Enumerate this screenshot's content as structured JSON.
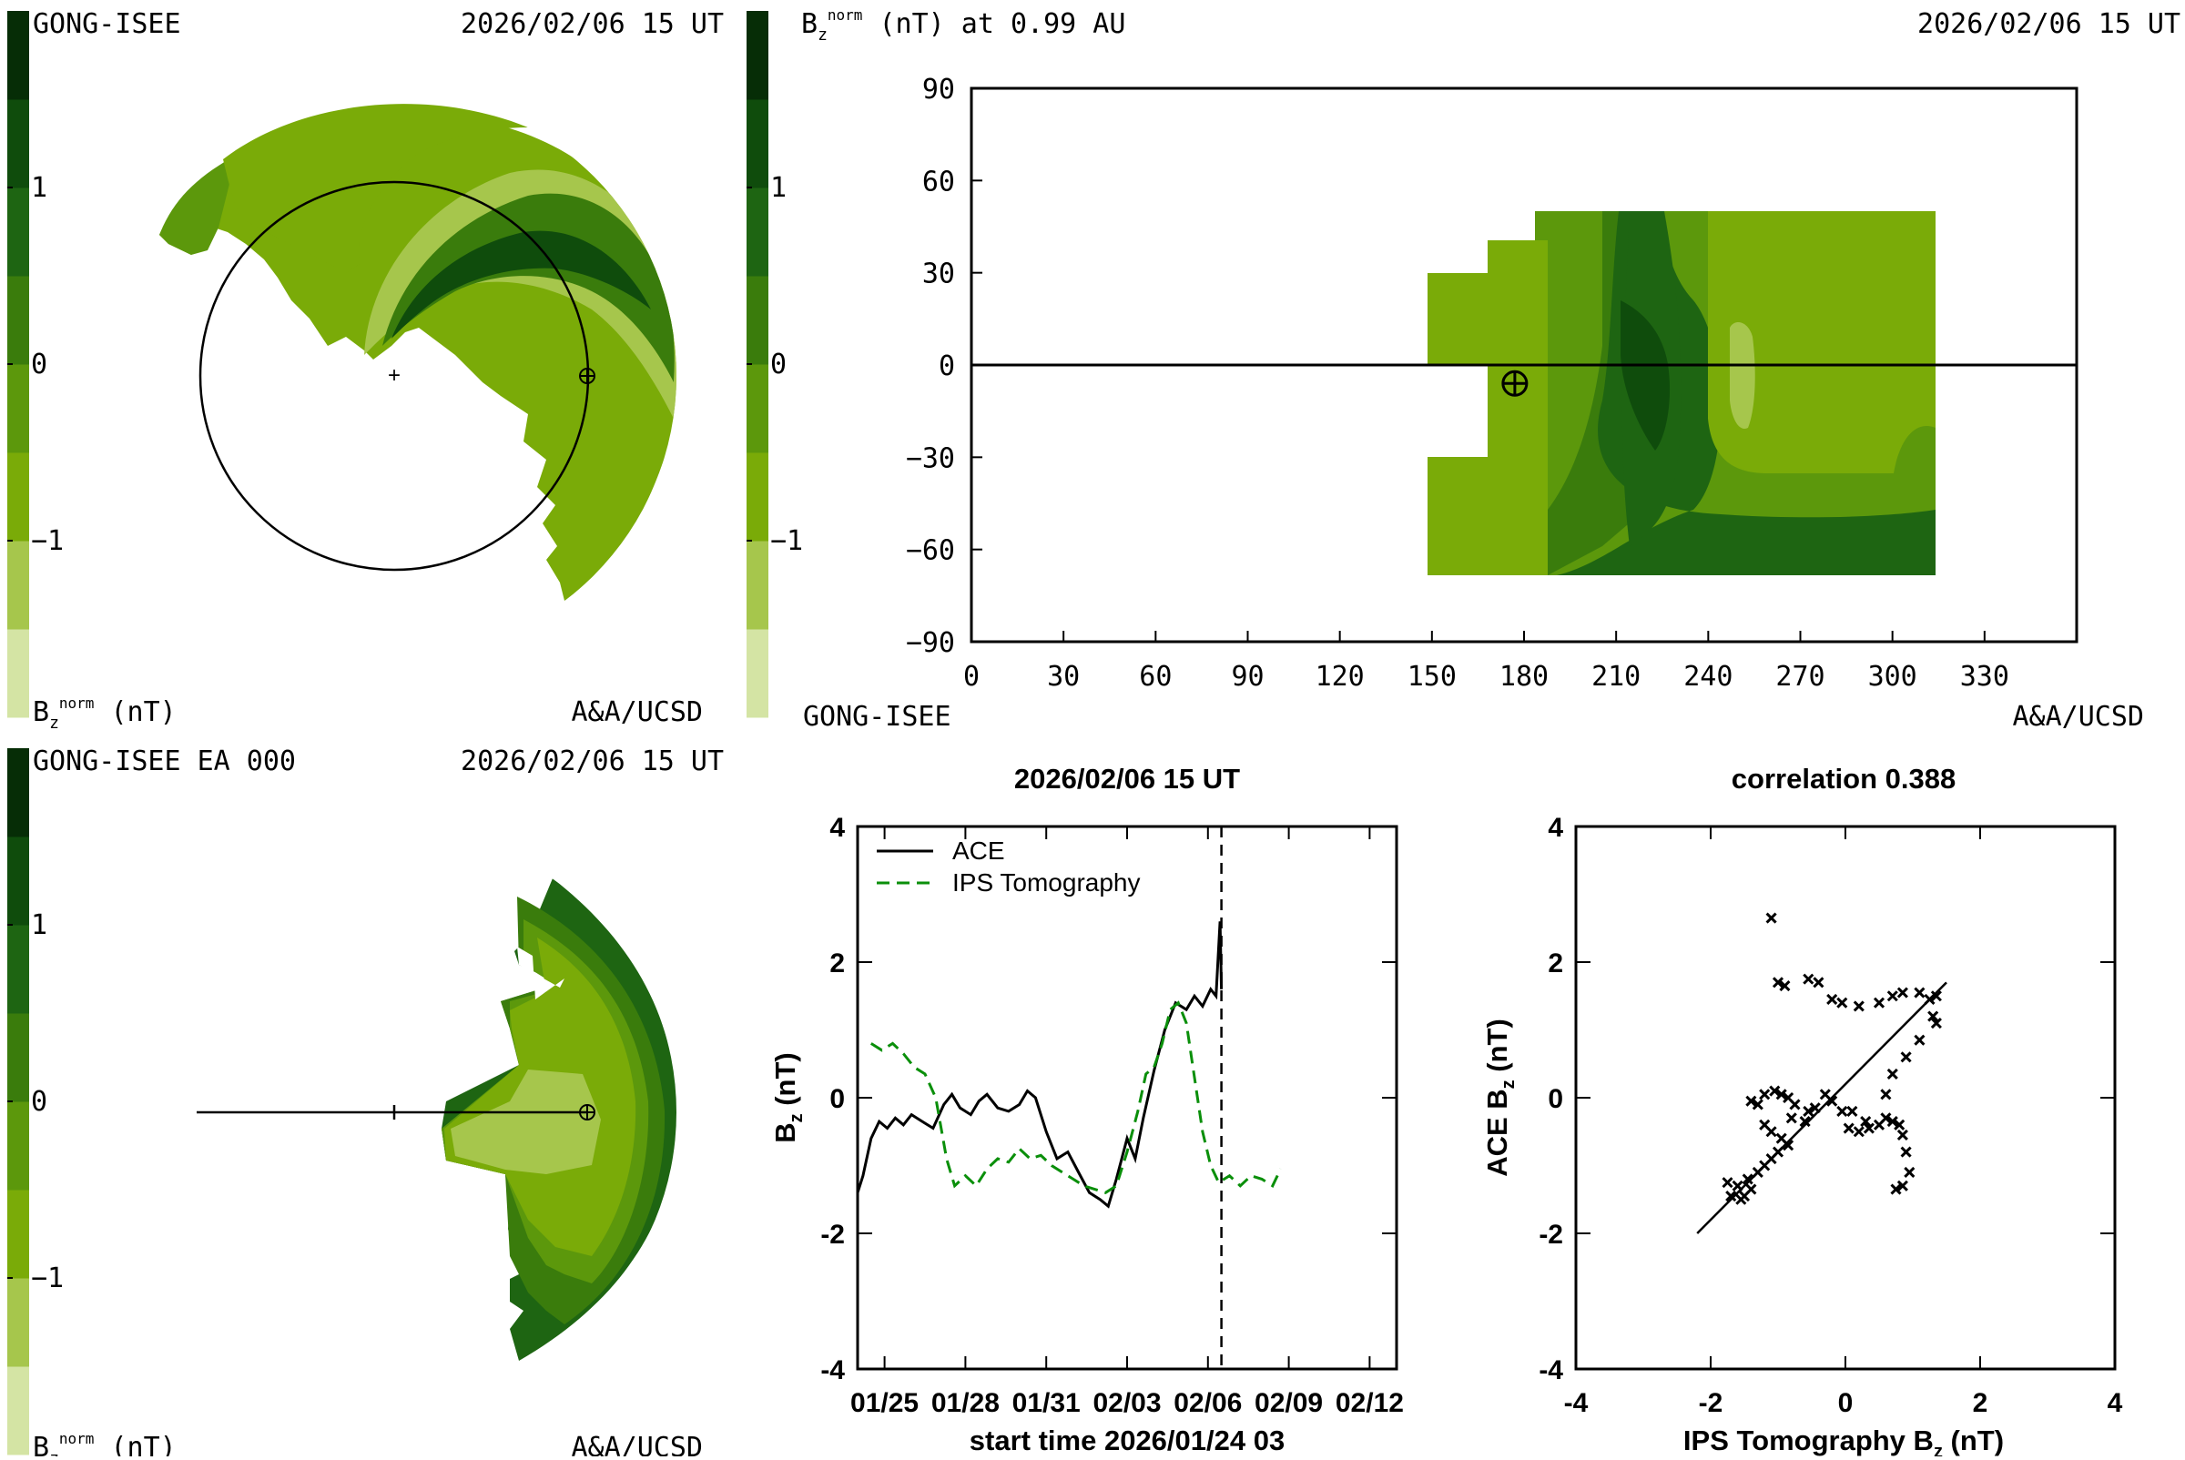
{
  "colorscale": {
    "colors": [
      "#d4e4a4",
      "#a6c64c",
      "#7aab08",
      "#5c980c",
      "#3a7c0c",
      "#1e6512",
      "#0f4c0c",
      "#062d06"
    ],
    "ticks": [
      "1",
      "0",
      "−1"
    ]
  },
  "panel_tl": {
    "title_left": "GONG-ISEE",
    "title_right": "2026/02/06 15 UT",
    "footer_left_base": "B",
    "footer_left_sub": "z",
    "footer_left_sup": "norm",
    "footer_left_rest": " (nT)",
    "footer_right": "A&A/UCSD"
  },
  "panel_tr": {
    "title_base": "B",
    "title_sub": "z",
    "title_sup": "norm",
    "title_rest": " (nT) at 0.99 AU",
    "title_right": "2026/02/06 15 UT",
    "footer_left": "GONG-ISEE",
    "footer_right": "A&A/UCSD",
    "x_ticks": [
      "0",
      "30",
      "60",
      "90",
      "120",
      "150",
      "180",
      "210",
      "240",
      "270",
      "300",
      "330"
    ],
    "y_ticks": [
      "90",
      "60",
      "30",
      "0",
      "−30",
      "−60",
      "−90"
    ],
    "xlim": [
      0,
      360
    ],
    "ylim": [
      -90,
      90
    ],
    "earth_marker": [
      177,
      -6
    ]
  },
  "panel_bl": {
    "title_left": "GONG-ISEE EA 000",
    "title_right": "2026/02/06 15 UT",
    "footer_left_base": "B",
    "footer_left_sub": "z",
    "footer_left_sup": "norm",
    "footer_left_rest": " (nT)",
    "footer_right": "A&A/UCSD"
  },
  "chart_data": [
    {
      "type": "line",
      "title": "2026/02/06 15 UT",
      "xlabel": "start time 2026/01/24 03",
      "ylabel_base": "B",
      "ylabel_sub": "z",
      "ylabel_rest": " (nT)",
      "x_ticks": [
        "01/25",
        "01/28",
        "01/31",
        "02/03",
        "02/06",
        "02/09",
        "02/12"
      ],
      "x_tick_days": [
        1,
        4,
        7,
        10,
        13,
        16,
        19
      ],
      "xlim": [
        0,
        20
      ],
      "ylim": [
        -4,
        4
      ],
      "y_ticks": [
        "4",
        "2",
        "0",
        "-2",
        "-4"
      ],
      "vline_day": 13.5,
      "series": [
        {
          "name": "ACE",
          "style": "solid",
          "color": "#000000",
          "points": [
            [
              0,
              -1.4
            ],
            [
              0.2,
              -1.15
            ],
            [
              0.5,
              -0.6
            ],
            [
              0.8,
              -0.35
            ],
            [
              1.1,
              -0.45
            ],
            [
              1.4,
              -0.3
            ],
            [
              1.7,
              -0.4
            ],
            [
              2.0,
              -0.25
            ],
            [
              2.4,
              -0.35
            ],
            [
              2.8,
              -0.45
            ],
            [
              3.2,
              -0.1
            ],
            [
              3.5,
              0.05
            ],
            [
              3.8,
              -0.15
            ],
            [
              4.2,
              -0.25
            ],
            [
              4.5,
              -0.05
            ],
            [
              4.8,
              0.05
            ],
            [
              5.2,
              -0.15
            ],
            [
              5.6,
              -0.2
            ],
            [
              6.0,
              -0.1
            ],
            [
              6.3,
              0.1
            ],
            [
              6.6,
              0.0
            ],
            [
              7.0,
              -0.5
            ],
            [
              7.4,
              -0.9
            ],
            [
              7.8,
              -0.8
            ],
            [
              8.2,
              -1.1
            ],
            [
              8.6,
              -1.4
            ],
            [
              9.0,
              -1.5
            ],
            [
              9.3,
              -1.6
            ],
            [
              9.6,
              -1.2
            ],
            [
              10.0,
              -0.6
            ],
            [
              10.3,
              -0.9
            ],
            [
              10.6,
              -0.3
            ],
            [
              11.0,
              0.4
            ],
            [
              11.4,
              1.0
            ],
            [
              11.8,
              1.4
            ],
            [
              12.2,
              1.3
            ],
            [
              12.5,
              1.5
            ],
            [
              12.8,
              1.35
            ],
            [
              13.1,
              1.6
            ],
            [
              13.3,
              1.5
            ],
            [
              13.45,
              2.6
            ],
            [
              13.5,
              1.6
            ]
          ]
        },
        {
          "name": "IPS Tomography",
          "style": "dashed",
          "color": "#0a8f0a",
          "points": [
            [
              0.5,
              0.8
            ],
            [
              0.9,
              0.7
            ],
            [
              1.3,
              0.8
            ],
            [
              1.7,
              0.65
            ],
            [
              2.1,
              0.45
            ],
            [
              2.5,
              0.35
            ],
            [
              2.9,
              0.0
            ],
            [
              3.3,
              -0.9
            ],
            [
              3.6,
              -1.3
            ],
            [
              4.0,
              -1.15
            ],
            [
              4.4,
              -1.3
            ],
            [
              4.8,
              -1.05
            ],
            [
              5.2,
              -0.9
            ],
            [
              5.6,
              -0.95
            ],
            [
              6.0,
              -0.75
            ],
            [
              6.4,
              -0.9
            ],
            [
              6.8,
              -0.85
            ],
            [
              7.2,
              -1.0
            ],
            [
              7.6,
              -1.1
            ],
            [
              8.0,
              -1.2
            ],
            [
              8.4,
              -1.3
            ],
            [
              8.8,
              -1.35
            ],
            [
              9.2,
              -1.4
            ],
            [
              9.6,
              -1.3
            ],
            [
              10.0,
              -0.8
            ],
            [
              10.4,
              -0.2
            ],
            [
              10.7,
              0.35
            ],
            [
              11.0,
              0.45
            ],
            [
              11.3,
              0.8
            ],
            [
              11.6,
              1.3
            ],
            [
              11.9,
              1.4
            ],
            [
              12.2,
              1.1
            ],
            [
              12.5,
              0.3
            ],
            [
              12.8,
              -0.5
            ],
            [
              13.1,
              -1.0
            ],
            [
              13.4,
              -1.25
            ],
            [
              13.8,
              -1.15
            ],
            [
              14.2,
              -1.3
            ],
            [
              14.6,
              -1.15
            ],
            [
              15.0,
              -1.2
            ],
            [
              15.4,
              -1.3
            ],
            [
              15.7,
              -1.05
            ]
          ]
        }
      ]
    },
    {
      "type": "scatter",
      "title": "correlation 0.388",
      "xlabel_base": "IPS Tomography B",
      "xlabel_sub": "z",
      "xlabel_rest": " (nT)",
      "ylabel_base": "ACE B",
      "ylabel_sub": "z",
      "ylabel_rest": " (nT)",
      "xlim": [
        -4,
        4
      ],
      "ylim": [
        -4,
        4
      ],
      "x_ticks": [
        "-4",
        "-2",
        "0",
        "2",
        "4"
      ],
      "y_ticks": [
        "4",
        "2",
        "0",
        "-2",
        "-4"
      ],
      "fit_line": [
        [
          -2.2,
          -2.0
        ],
        [
          1.5,
          1.7
        ]
      ],
      "points": [
        [
          -1.1,
          2.65
        ],
        [
          -1.0,
          1.7
        ],
        [
          -0.9,
          1.65
        ],
        [
          -0.55,
          1.75
        ],
        [
          -0.4,
          1.7
        ],
        [
          -0.2,
          1.45
        ],
        [
          -0.05,
          1.4
        ],
        [
          0.2,
          1.35
        ],
        [
          0.5,
          1.4
        ],
        [
          0.7,
          1.5
        ],
        [
          0.85,
          1.55
        ],
        [
          1.1,
          1.55
        ],
        [
          1.25,
          1.45
        ],
        [
          1.35,
          1.5
        ],
        [
          1.3,
          1.2
        ],
        [
          1.35,
          1.1
        ],
        [
          1.1,
          0.85
        ],
        [
          0.9,
          0.6
        ],
        [
          0.7,
          0.35
        ],
        [
          0.6,
          0.05
        ],
        [
          -1.4,
          -0.05
        ],
        [
          -1.3,
          -0.1
        ],
        [
          -1.2,
          0.05
        ],
        [
          -1.05,
          0.1
        ],
        [
          -0.95,
          0.05
        ],
        [
          -0.85,
          0.0
        ],
        [
          -0.75,
          -0.1
        ],
        [
          -0.55,
          -0.2
        ],
        [
          -0.45,
          -0.15
        ],
        [
          -0.3,
          0.05
        ],
        [
          -0.2,
          -0.05
        ],
        [
          -0.05,
          -0.2
        ],
        [
          0.05,
          -0.45
        ],
        [
          0.2,
          -0.5
        ],
        [
          0.35,
          -0.45
        ],
        [
          0.5,
          -0.4
        ],
        [
          0.6,
          -0.3
        ],
        [
          0.7,
          -0.35
        ],
        [
          0.8,
          -0.4
        ],
        [
          0.85,
          -0.55
        ],
        [
          0.9,
          -0.8
        ],
        [
          0.95,
          -1.1
        ],
        [
          0.85,
          -1.3
        ],
        [
          0.75,
          -1.35
        ],
        [
          -1.2,
          -0.4
        ],
        [
          -1.1,
          -0.5
        ],
        [
          -0.95,
          -0.6
        ],
        [
          -0.85,
          -0.7
        ],
        [
          -1.0,
          -0.8
        ],
        [
          -1.1,
          -0.9
        ],
        [
          -1.2,
          -1.0
        ],
        [
          -1.3,
          -1.1
        ],
        [
          -1.45,
          -1.2
        ],
        [
          -1.6,
          -1.3
        ],
        [
          -1.7,
          -1.45
        ],
        [
          -1.55,
          -1.5
        ],
        [
          -1.4,
          -1.35
        ],
        [
          -0.8,
          -0.3
        ],
        [
          -0.6,
          -0.35
        ],
        [
          -1.5,
          -1.45
        ],
        [
          -1.75,
          -1.25
        ],
        [
          0.3,
          -0.35
        ],
        [
          0.1,
          -0.2
        ]
      ]
    }
  ]
}
